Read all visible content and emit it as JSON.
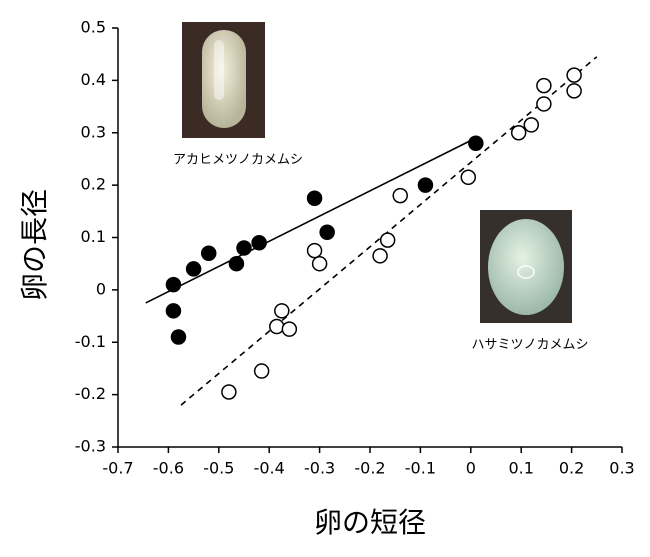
{
  "chart_data": {
    "type": "scatter",
    "x_label": "卵の短径",
    "y_label": "卵の長径",
    "annotations": [
      "アカヒメツノカメムシ",
      "ハサミツノカメムシ"
    ],
    "xlim": [
      -0.7,
      0.3
    ],
    "ylim": [
      -0.3,
      0.5
    ],
    "xticks": [
      -0.7,
      -0.6,
      -0.5,
      -0.4,
      -0.3,
      -0.2,
      -0.1,
      0,
      0.1,
      0.2,
      0.3
    ],
    "yticks": [
      -0.3,
      -0.2,
      -0.1,
      0,
      0.1,
      0.2,
      0.3,
      0.4,
      0.5
    ],
    "series": [
      {
        "color": "#000000",
        "filled": true,
        "x": [
          -0.59,
          -0.59,
          -0.58,
          -0.55,
          -0.52,
          -0.465,
          -0.45,
          -0.42,
          -0.31,
          -0.285,
          -0.09,
          0.01
        ],
        "values": [
          0.01,
          -0.04,
          -0.09,
          0.04,
          0.07,
          0.05,
          0.08,
          0.09,
          0.175,
          0.11,
          0.2,
          0.28
        ]
      },
      {
        "color": "#000000",
        "filled": false,
        "x": [
          -0.48,
          -0.415,
          -0.385,
          -0.375,
          -0.36,
          -0.31,
          -0.3,
          -0.18,
          -0.165,
          -0.14,
          -0.005,
          0.095,
          0.12,
          0.145,
          0.145,
          0.205,
          0.205
        ],
        "values": [
          -0.195,
          -0.155,
          -0.07,
          -0.04,
          -0.075,
          0.075,
          0.05,
          0.065,
          0.095,
          0.18,
          0.215,
          0.3,
          0.315,
          0.39,
          0.355,
          0.41,
          0.38
        ]
      }
    ],
    "fit_lines": [
      {
        "color": "#000000",
        "dashed": false,
        "x": [
          -0.645,
          0.01
        ],
        "values": [
          -0.025,
          0.29
        ]
      },
      {
        "color": "#000000",
        "dashed": true,
        "x": [
          -0.575,
          0.25
        ],
        "values": [
          -0.22,
          0.445
        ]
      }
    ]
  }
}
